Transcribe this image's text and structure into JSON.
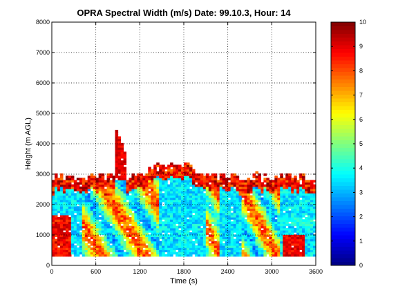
{
  "chart_data": {
    "type": "heatmap",
    "title": "OPRA Spectral Width (m/s)  Date: 99.10.3, Hour: 14",
    "xlabel": "Time (s)",
    "ylabel": "Height (m AGL)",
    "xlim": [
      0,
      3600
    ],
    "ylim": [
      0,
      8000
    ],
    "x_ticks": [
      0,
      600,
      1200,
      1800,
      2400,
      3000,
      3600
    ],
    "x_tick_labels": [
      "0",
      "600",
      "1200",
      "1800",
      "2400",
      "3000",
      "3600"
    ],
    "y_ticks": [
      0,
      1000,
      2000,
      3000,
      4000,
      5000,
      6000,
      7000,
      8000
    ],
    "y_tick_labels": [
      "0",
      "1000",
      "2000",
      "3000",
      "4000",
      "5000",
      "6000",
      "7000",
      "8000"
    ],
    "grid": true,
    "colorbar": {
      "colormap": "jet",
      "range": [
        0,
        10
      ],
      "ticks": [
        0,
        1,
        2,
        3,
        4,
        5,
        6,
        7,
        8,
        9,
        10
      ],
      "tick_labels": [
        "0",
        "1",
        "2",
        "3",
        "4",
        "5",
        "6",
        "7",
        "8",
        "9",
        "10"
      ]
    },
    "data_extent": {
      "height_min": 300,
      "height_max_typical": 2900,
      "height_max": 4600
    },
    "features": [
      {
        "time_range": [
          1450,
          2100
        ],
        "height_range": [
          300,
          3400
        ],
        "spectral_width": 3.5
      },
      {
        "time_range": [
          0,
          250
        ],
        "height_range": [
          300,
          1600
        ],
        "spectral_width": 9.5
      },
      {
        "time_range": [
          250,
          400
        ],
        "height_range": [
          300,
          2800
        ],
        "spectral_width": 4.5
      },
      {
        "time_range": [
          850,
          1000
        ],
        "height_range": [
          2800,
          4600
        ],
        "spectral_width": 9.5
      },
      {
        "time_range": [
          2300,
          2600
        ],
        "height_range": [
          300,
          2800
        ],
        "spectral_width": 4.0
      },
      {
        "time_range": [
          3150,
          3450
        ],
        "height_range": [
          300,
          1000
        ],
        "spectral_width": 9.5
      },
      {
        "time_range": [
          3100,
          3600
        ],
        "height_range": [
          1300,
          1550
        ],
        "spectral_width": 4.0
      }
    ]
  }
}
